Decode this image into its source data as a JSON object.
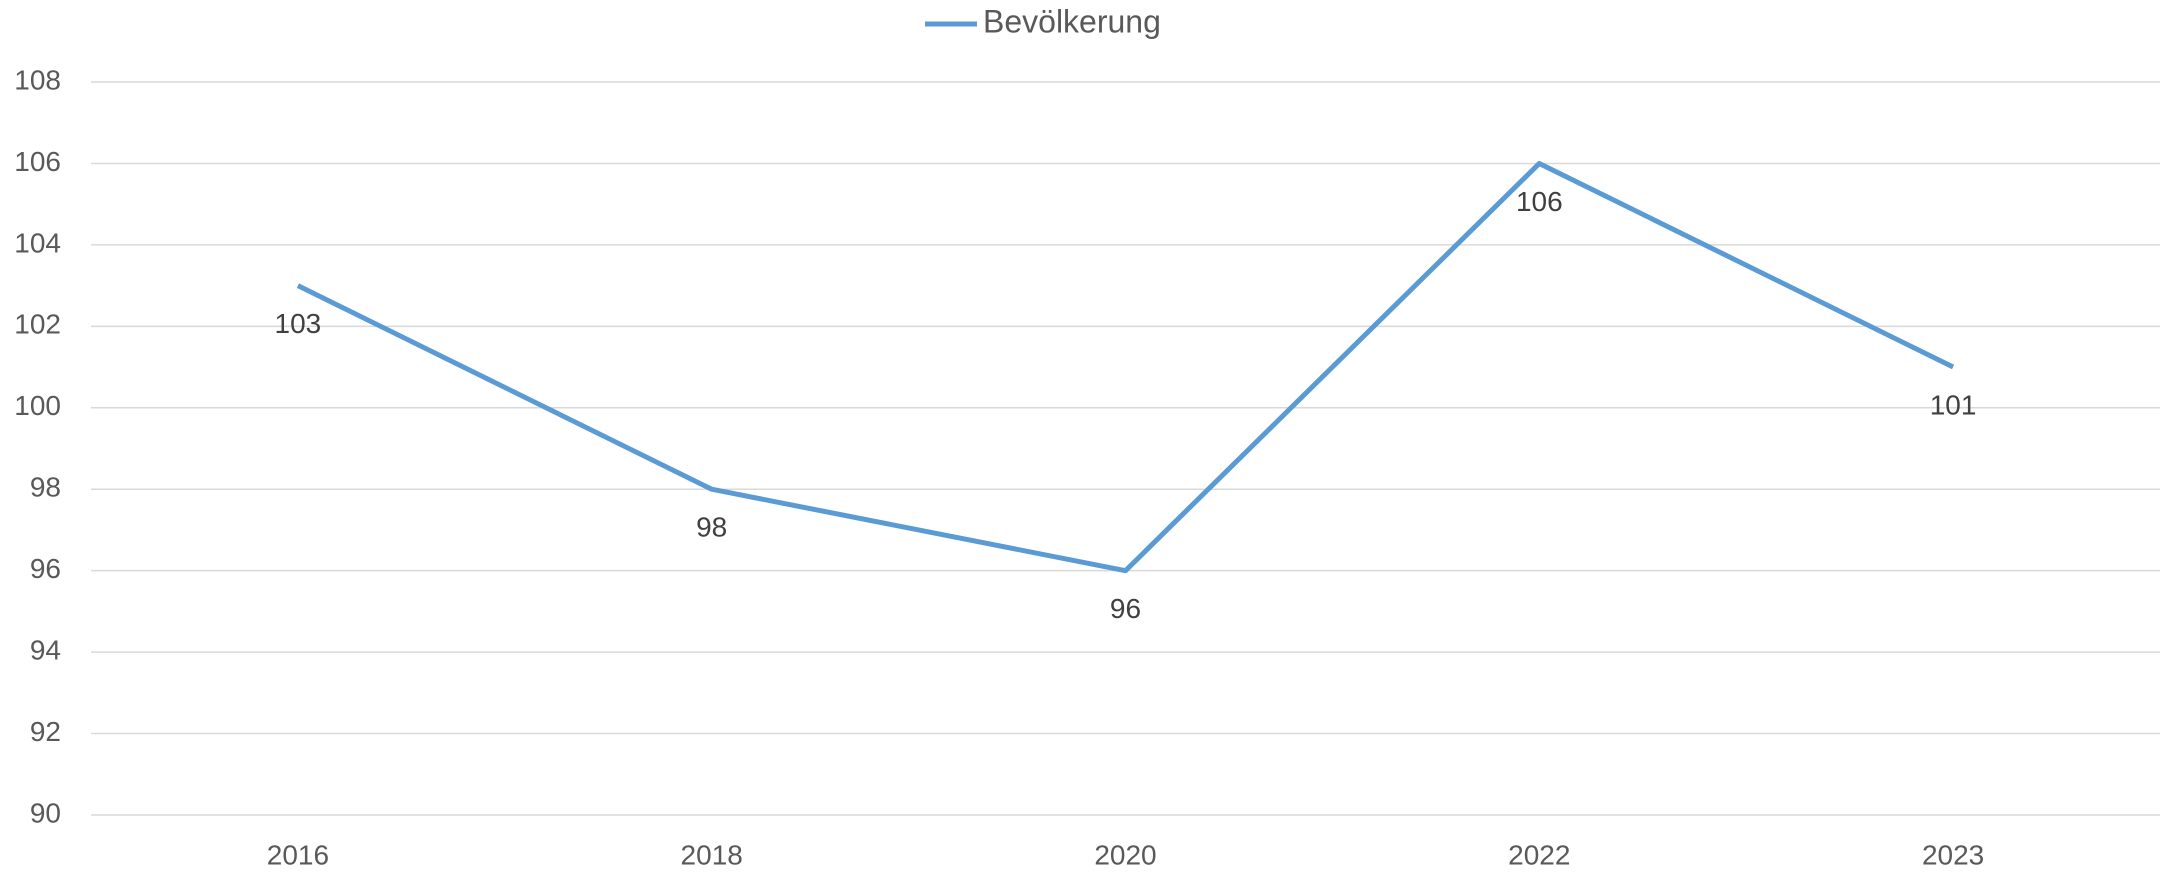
{
  "chart_data": {
    "type": "line",
    "categories": [
      "2016",
      "2018",
      "2020",
      "2022",
      "2023"
    ],
    "series": [
      {
        "name": "Bevölkerung",
        "color": "#5b9bd5",
        "values": [
          103,
          98,
          96,
          106,
          101
        ]
      }
    ],
    "ylim": [
      90,
      108
    ],
    "yticks": [
      90,
      92,
      94,
      96,
      98,
      100,
      102,
      104,
      106,
      108
    ],
    "grid": true,
    "legend": "top",
    "data_labels": true
  }
}
